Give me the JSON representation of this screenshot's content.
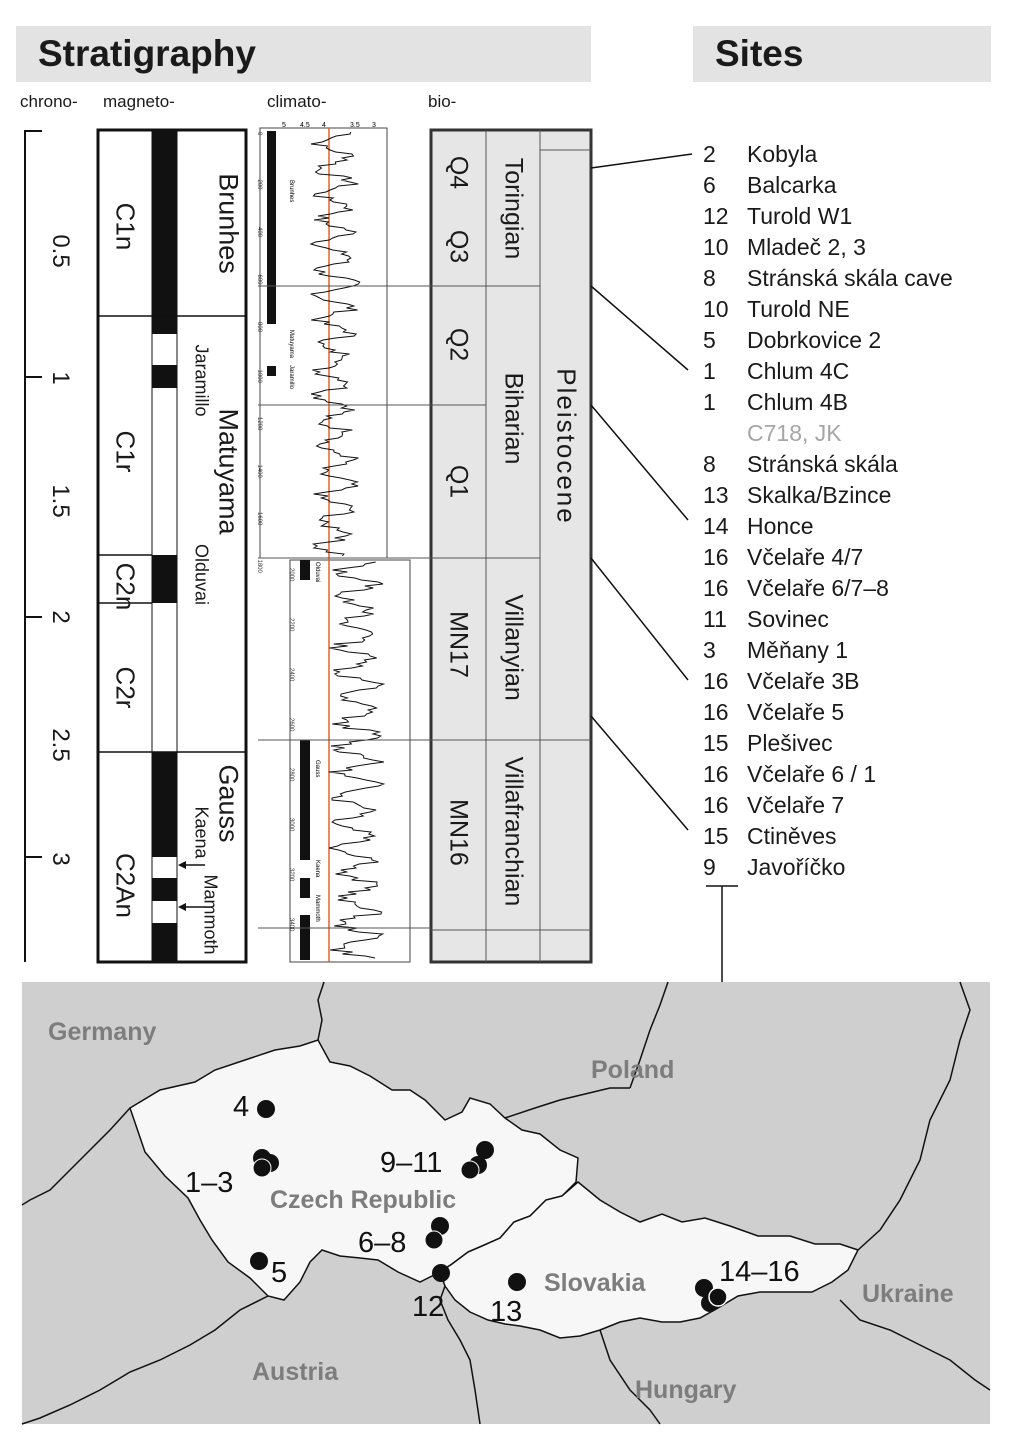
{
  "headers": {
    "stratigraphy": "Stratigraphy",
    "sites": "Sites"
  },
  "column_labels": {
    "chrono": "chrono-",
    "magneto": "magneto-",
    "climato": "climato-",
    "bio": "bio-"
  },
  "chrono_ticks": [
    "0.5",
    "1",
    "1.5",
    "2",
    "2.5",
    "3"
  ],
  "magneto": {
    "chrons": [
      "C1n",
      "C1r",
      "C2n",
      "C2r",
      "C2An"
    ],
    "epochs": [
      "Brunhes",
      "Matuyama",
      "Gauss"
    ],
    "events": [
      "Jaramillo",
      "Olduvai",
      "Kaena",
      "Mammoth"
    ]
  },
  "bio": {
    "zones": [
      "Q4",
      "Q3",
      "Q2",
      "Q1",
      "MN17",
      "MN16"
    ],
    "stages": [
      "Toringian",
      "Biharian",
      "Villanyian",
      "Villafranchian"
    ],
    "epoch": "Pleistocene"
  },
  "climato_axis": {
    "top_ticks": [
      "5",
      "4.5",
      "4",
      "3.5",
      "3"
    ],
    "depth_ticks_upper": [
      "0",
      "200",
      "400",
      "600",
      "800",
      "1000",
      "1200",
      "1400",
      "1600",
      "1800"
    ],
    "depth_ticks_lower": [
      "2000",
      "2200",
      "2400",
      "2600",
      "2800",
      "3000",
      "3200",
      "3400"
    ],
    "in_panel_labels": [
      "Brunhes",
      "Matuyama",
      "Jaramillo",
      "Olduvai",
      "Gauss",
      "Kaena",
      "Mammoth"
    ]
  },
  "sites": [
    {
      "num": "2",
      "name": "Kobyla"
    },
    {
      "num": "6",
      "name": "Balcarka"
    },
    {
      "num": "12",
      "name": "Turold W1"
    },
    {
      "num": "10",
      "name": "Mladeč 2, 3"
    },
    {
      "num": "8",
      "name": "Stránská skála cave"
    },
    {
      "num": "10",
      "name": "Turold NE"
    },
    {
      "num": "5",
      "name": "Dobrkovice 2"
    },
    {
      "num": "1",
      "name": "Chlum 4C"
    },
    {
      "num": "1",
      "name": "Chlum 4B"
    },
    {
      "num": "",
      "name": "C718, JK"
    },
    {
      "num": "8",
      "name": "Stránská skála"
    },
    {
      "num": "13",
      "name": "Skalka/Bzince"
    },
    {
      "num": "14",
      "name": "Honce"
    },
    {
      "num": "16",
      "name": "Včelaře 4/7"
    },
    {
      "num": "16",
      "name": "Včelaře 6/7–8"
    },
    {
      "num": "11",
      "name": "Sovinec"
    },
    {
      "num": "3",
      "name": "Měňany 1"
    },
    {
      "num": "16",
      "name": "Včelaře 3B"
    },
    {
      "num": "16",
      "name": "Včelaře 5"
    },
    {
      "num": "15",
      "name": "Plešivec"
    },
    {
      "num": "16",
      "name": "Včelaře 6 / 1"
    },
    {
      "num": "16",
      "name": "Včelaře 7"
    },
    {
      "num": "15",
      "name": "Ctiněves"
    },
    {
      "num": "9",
      "name": "Javoříčko"
    }
  ],
  "map": {
    "countries": [
      "Germany",
      "Poland",
      "Czech Republic",
      "Slovakia",
      "Ukraine",
      "Austria",
      "Hungary"
    ],
    "site_labels": [
      "4",
      "1–3",
      "9–11",
      "6–8",
      "5",
      "12",
      "13",
      "14–16"
    ]
  },
  "colors": {
    "header_bg": "#e3e3e3",
    "map_bg": "#cfcfcf",
    "country_fill": "#f7f7f7",
    "climate_marker": "#e0622a",
    "bio_fill": "#e6e6e6"
  }
}
